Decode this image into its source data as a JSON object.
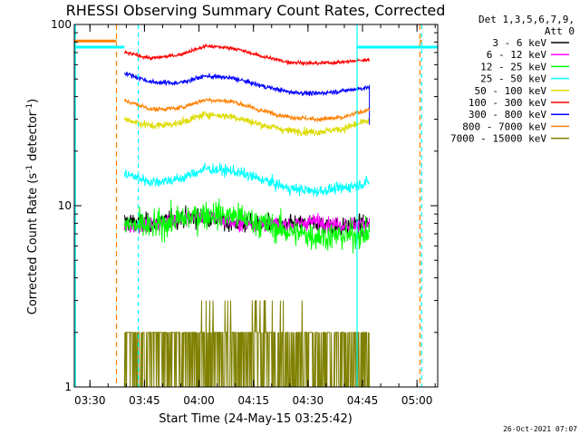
{
  "chart_data": {
    "type": "line",
    "title": "RHESSI Observing Summary Count Rates, Corrected",
    "xlabel": "Start Time (24-May-15 03:25:42)",
    "ylabel_main": "Corrected Count Rate (s",
    "ylabel_sup1": "-1",
    "ylabel_mid": " detector",
    "ylabel_sup2": "-1",
    "ylabel_end": ")",
    "y_scale": "log",
    "ylim": [
      1,
      100
    ],
    "y_ticks": [
      {
        "value": 1,
        "label": "1"
      },
      {
        "value": 10,
        "label": "10"
      },
      {
        "value": 100,
        "label": "100"
      }
    ],
    "x_ticks": [
      "03:30",
      "03:45",
      "04:00",
      "04:15",
      "04:30",
      "04:45",
      "05:00"
    ],
    "x_tick_minutes": [
      4.3,
      19.3,
      34.3,
      49.3,
      64.3,
      79.3,
      94.3
    ],
    "xlim_minutes": [
      0,
      100
    ],
    "data_range_minutes": [
      13.8,
      81.2
    ],
    "legend_header": [
      "Det 1,3,5,6,7,9,",
      "Att 0"
    ],
    "legend_position": "right",
    "timestamp": "26-Oct-2021 07:07",
    "cyan_flag_level": 75,
    "orange_flag_level": 81,
    "cyan_flag_segments": [
      [
        0,
        13.8
      ],
      [
        77.8,
        100
      ]
    ],
    "orange_flag_segments": [
      [
        0,
        11.6
      ],
      [
        95.1,
        95.6
      ]
    ],
    "cyan_vlines_minutes": [
      0.3,
      17.6,
      77.8,
      95.6
    ],
    "orange_vlines_minutes": [
      11.6,
      95.1
    ],
    "series": [
      {
        "name": "3 - 6 keV",
        "color": "#000000",
        "profile": [
          8.2,
          8.0,
          8.5,
          8.6,
          8.0,
          7.9,
          7.8,
          8.0,
          7.6,
          7.9
        ],
        "noise": 0.1,
        "noise_type": "lognormal"
      },
      {
        "name": "6 - 12 keV",
        "color": "#ff00ff",
        "profile": [
          7.6,
          7.9,
          8.5,
          8.8,
          8.0,
          8.0,
          7.8,
          8.2,
          7.8,
          8.0
        ],
        "noise": 0.08,
        "noise_type": "lognormal"
      },
      {
        "name": "12 - 25 keV",
        "color": "#00ff00",
        "profile": [
          7.8,
          7.6,
          8.4,
          9.0,
          8.8,
          8.0,
          7.2,
          6.8,
          6.8,
          7.0
        ],
        "noise": 0.15,
        "noise_type": "lognormal"
      },
      {
        "name": "25 - 50 keV",
        "color": "#00ffff",
        "profile": [
          15.0,
          13.5,
          14.0,
          16.0,
          15.5,
          14.0,
          12.5,
          12.0,
          12.5,
          13.5
        ],
        "noise": 0.06,
        "noise_type": "lognormal"
      },
      {
        "name": "50 - 100 keV",
        "color": "#dcdc00",
        "profile": [
          30.0,
          27.5,
          28.5,
          32.0,
          31.0,
          28.0,
          26.0,
          25.5,
          26.5,
          29.5
        ],
        "noise": 0.04,
        "noise_type": "lognormal"
      },
      {
        "name": "100 - 300 keV",
        "color": "#ff0000",
        "profile": [
          70.0,
          65.0,
          68.0,
          76.0,
          74.0,
          67.0,
          62.0,
          61.0,
          62.0,
          64.0
        ],
        "noise": 0.02,
        "noise_type": "lognormal"
      },
      {
        "name": "300 - 800 keV",
        "color": "#0000ff",
        "profile": [
          54.0,
          48.0,
          47.5,
          52.0,
          50.5,
          46.0,
          42.5,
          41.5,
          43.0,
          45.0
        ],
        "noise": 0.025,
        "noise_type": "lognormal"
      },
      {
        "name": "800 - 7000 keV",
        "color": "#ff8000",
        "profile": [
          38.0,
          34.0,
          34.5,
          38.5,
          37.5,
          33.5,
          31.0,
          30.0,
          30.5,
          34.0
        ],
        "noise": 0.025,
        "noise_type": "lognormal"
      },
      {
        "name": "7000 - 15000 keV",
        "color": "#808000",
        "profile": [
          1.0,
          1.5,
          1.5,
          2.0,
          2.0,
          1.6,
          1.5,
          1.5,
          1.5,
          1.5
        ],
        "noise": 0,
        "noise_type": "discrete"
      }
    ]
  }
}
